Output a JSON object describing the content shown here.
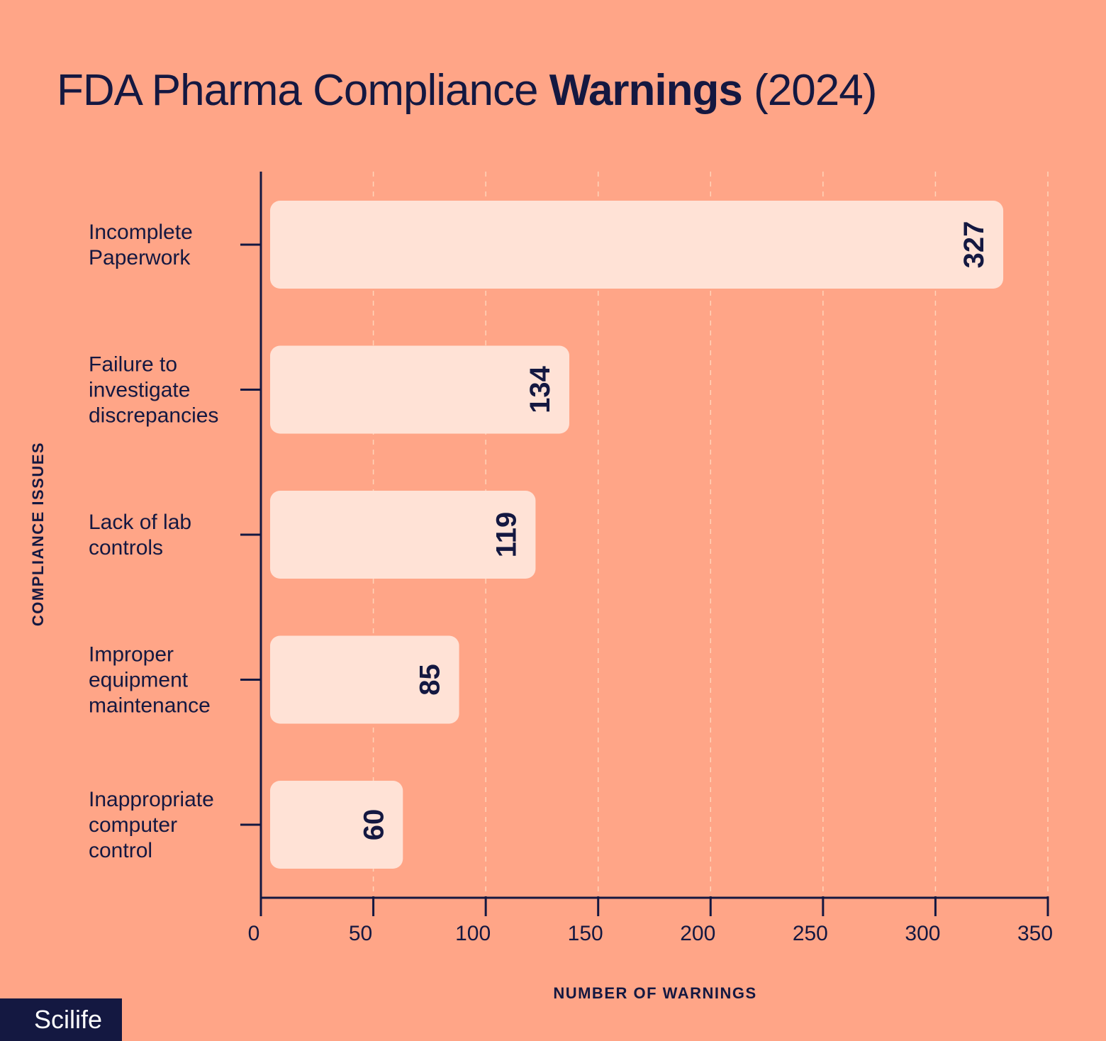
{
  "title": {
    "regular": "FDA Pharma Compliance ",
    "bold": "Warnings",
    "suffix": " (2024)"
  },
  "logo": "Scilife",
  "colors": {
    "background": "#FFA587",
    "bar": "#FFE2D6",
    "ink": "#141841",
    "grid": "#FFD3B8"
  },
  "chart_data": {
    "type": "bar",
    "orientation": "horizontal",
    "categories": [
      [
        "Incomplete",
        "Paperwork"
      ],
      [
        "Failure to",
        "investigate",
        "discrepancies"
      ],
      [
        "Lack of lab",
        "controls"
      ],
      [
        "Improper",
        "equipment",
        "maintenance"
      ],
      [
        "Inappropriate",
        "computer",
        "control"
      ]
    ],
    "values": [
      327,
      134,
      119,
      85,
      60
    ],
    "xlabel": "NUMBER OF WARNINGS",
    "ylabel": "COMPLIANCE ISSUES",
    "xlim": [
      0,
      350
    ],
    "xticks": [
      0,
      50,
      100,
      150,
      200,
      250,
      300,
      350
    ],
    "grid": "vertical dashed",
    "data_labels": true
  }
}
